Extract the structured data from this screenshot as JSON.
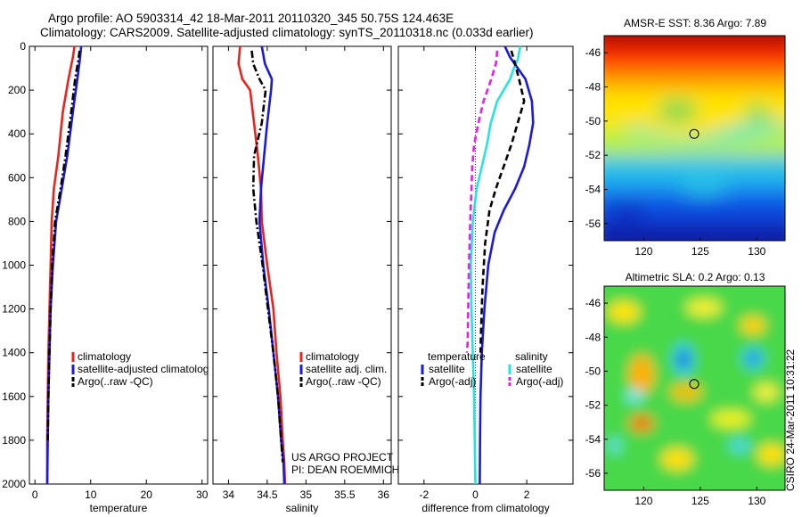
{
  "title": {
    "line1": "Argo profile: AO 5903314_42 18-Mar-2011 20110320_345 50.75S 124.463E",
    "line2": "Climatology: CARS2009. Satellite-adjusted climatology: synTS_20110318.nc (0.033d earlier)"
  },
  "side_credit": "CSIRO 24-Mar-2011 10:31:22",
  "project_credit": [
    "US ARGO PROJECT",
    "PI: DEAN ROEMMICH"
  ],
  "colors": {
    "climatology": "#e8241c",
    "satellite": "#1a1adb",
    "argo": "#000000",
    "satellite_salinity": "#26e3e3",
    "argo_salinity_adj": "#e61ee6"
  },
  "chart_data": [
    {
      "type": "line",
      "xlabel": "temperature",
      "ylabel": "",
      "xlim": [
        -1,
        31
      ],
      "ylim": [
        2000,
        0
      ],
      "y_inverted": true,
      "xticks": [
        "0",
        "10",
        "20",
        "30"
      ],
      "yticks": [
        "0",
        "200",
        "400",
        "600",
        "800",
        "1000",
        "1200",
        "1400",
        "1600",
        "1800",
        "2000"
      ],
      "legend": [
        "climatology",
        "satellite-adjusted climatolog",
        "Argo(..raw -QC)"
      ],
      "legend_placement": "lower-right",
      "series": [
        {
          "name": "climatology",
          "style": "solid",
          "color_key": "climatology",
          "x": [
            7.1,
            6.8,
            6.0,
            5.0,
            4.2,
            3.4,
            3.0,
            2.8,
            2.6,
            2.4,
            2.3,
            2.2,
            2.2
          ],
          "y": [
            0,
            50,
            150,
            300,
            500,
            650,
            800,
            1000,
            1200,
            1400,
            1600,
            1800,
            2000
          ]
        },
        {
          "name": "satellite-adjusted climatolog",
          "style": "solid",
          "color_key": "satellite",
          "x": [
            8.3,
            8.1,
            7.6,
            6.8,
            5.8,
            4.8,
            3.8,
            3.2,
            2.8,
            2.6,
            2.4,
            2.3,
            2.2
          ],
          "y": [
            0,
            50,
            150,
            300,
            500,
            650,
            800,
            1000,
            1200,
            1400,
            1600,
            1800,
            2000
          ]
        },
        {
          "name": "Argo(..raw -QC)",
          "style": "dashdot",
          "color_key": "argo",
          "x": [
            8.0,
            7.8,
            7.2,
            6.5,
            5.5,
            4.6,
            3.6,
            3.1,
            2.8,
            2.6,
            2.4,
            2.3
          ],
          "y": [
            20,
            60,
            150,
            300,
            500,
            650,
            800,
            1000,
            1200,
            1400,
            1600,
            1800
          ]
        }
      ]
    },
    {
      "type": "line",
      "xlabel": "salinity",
      "ylabel": "",
      "xlim": [
        33.8,
        36.1
      ],
      "ylim": [
        2000,
        0
      ],
      "y_inverted": true,
      "xticks": [
        "34",
        "34.5",
        "35",
        "35.5",
        "36"
      ],
      "yticks": [],
      "legend": [
        "climatology",
        "satellite adj. clim.",
        "Argo(..raw -QC)"
      ],
      "legend_placement": "lower-right",
      "series": [
        {
          "name": "climatology",
          "style": "solid",
          "color_key": "climatology",
          "x": [
            34.15,
            34.13,
            34.18,
            34.28,
            34.33,
            34.38,
            34.42,
            34.43,
            34.5,
            34.58,
            34.62,
            34.67,
            34.7,
            34.72,
            34.73
          ],
          "y": [
            0,
            80,
            150,
            200,
            350,
            500,
            650,
            800,
            1000,
            1200,
            1400,
            1600,
            1800,
            1900,
            2000
          ]
        },
        {
          "name": "satellite adj. clim.",
          "style": "solid",
          "color_key": "satellite",
          "x": [
            34.43,
            34.47,
            34.56,
            34.55,
            34.5,
            34.46,
            34.42,
            34.4,
            34.45,
            34.52,
            34.58,
            34.64,
            34.68,
            34.71,
            34.72
          ],
          "y": [
            0,
            80,
            150,
            200,
            350,
            500,
            650,
            800,
            1000,
            1200,
            1400,
            1600,
            1800,
            1900,
            2000
          ]
        },
        {
          "name": "Argo(..raw -QC)",
          "style": "dashdot",
          "color_key": "argo",
          "x": [
            34.3,
            34.32,
            34.4,
            34.48,
            34.43,
            34.33,
            34.32,
            34.36,
            34.44,
            34.51,
            34.58,
            34.64,
            34.68,
            34.7
          ],
          "y": [
            20,
            80,
            150,
            200,
            350,
            500,
            650,
            800,
            1000,
            1200,
            1400,
            1600,
            1800,
            1900
          ]
        }
      ]
    },
    {
      "type": "line",
      "xlabel": "difference from climatology",
      "ylabel": "",
      "xlim": [
        -3,
        3.8
      ],
      "ylim": [
        2000,
        0
      ],
      "y_inverted": true,
      "xticks": [
        "-2",
        "0",
        "2"
      ],
      "yticks": [],
      "reference_line": {
        "x": 0,
        "style": "dotted"
      },
      "legend_groups": [
        {
          "heading": "temperature",
          "entries": [
            "satellite",
            "Argo(-adj)"
          ]
        },
        {
          "heading": "salinity",
          "entries": [
            "satellite",
            "Argo(-adj)"
          ]
        }
      ],
      "legend_placement": "lower-right",
      "series": [
        {
          "name": "satellite",
          "group": "temperature",
          "style": "solid",
          "color_key": "satellite",
          "x": [
            1.15,
            1.35,
            1.65,
            1.95,
            2.2,
            2.25,
            2.1,
            1.9,
            1.55,
            1.1,
            0.75,
            0.5,
            0.35,
            0.25,
            0.2,
            0.18,
            0.17
          ],
          "y": [
            0,
            50,
            100,
            150,
            250,
            350,
            450,
            550,
            650,
            750,
            850,
            1000,
            1200,
            1400,
            1600,
            1800,
            2000
          ]
        },
        {
          "name": "satellite",
          "group": "salinity",
          "style": "solid",
          "color_key": "satellite_salinity",
          "x": [
            1.75,
            1.65,
            1.5,
            1.35,
            0.85,
            0.6,
            0.45,
            0.25,
            0.05,
            -0.1,
            -0.18,
            -0.15,
            -0.1,
            -0.05,
            0.0
          ],
          "y": [
            0,
            60,
            100,
            150,
            250,
            350,
            450,
            550,
            650,
            800,
            1000,
            1200,
            1400,
            1600,
            2000
          ]
        },
        {
          "name": "Argo(-adj)",
          "group": "temperature",
          "style": "dashed",
          "color_key": "argo",
          "x": [
            1.4,
            1.5,
            1.7,
            1.9,
            1.65,
            1.4,
            1.1,
            0.8,
            0.55,
            0.38,
            0.28,
            0.22,
            0.2
          ],
          "y": [
            20,
            60,
            150,
            250,
            350,
            450,
            550,
            650,
            750,
            900,
            1100,
            1300,
            1400
          ]
        },
        {
          "name": "Argo(-adj)",
          "group": "salinity",
          "style": "dashed",
          "color_key": "argo_salinity_adj",
          "x": [
            0.85,
            0.8,
            0.62,
            0.32,
            0.12,
            -0.05,
            -0.12,
            -0.15,
            -0.2,
            -0.25,
            -0.28,
            -0.3,
            -0.33
          ],
          "y": [
            20,
            80,
            150,
            250,
            350,
            450,
            550,
            650,
            800,
            1000,
            1200,
            1350,
            1400
          ]
        }
      ]
    },
    {
      "type": "heatmap",
      "title": "AMSR-E SST: 8.36 Argo: 7.89",
      "xlim": [
        116.5,
        132.5
      ],
      "ylim": [
        -57,
        -45
      ],
      "xticks": [
        "120",
        "125",
        "130"
      ],
      "yticks": [
        "-46",
        "-48",
        "-50",
        "-52",
        "-54",
        "-56"
      ],
      "colormap": "jet",
      "marker": {
        "lon": 124.463,
        "lat": -50.75,
        "shape": "circle"
      }
    },
    {
      "type": "heatmap",
      "title": "Altimetric SLA: 0.2 Argo: 0.13",
      "xlim": [
        116.5,
        132.5
      ],
      "ylim": [
        -57,
        -45
      ],
      "xticks": [
        "120",
        "125",
        "130"
      ],
      "yticks": [
        "-46",
        "-48",
        "-50",
        "-52",
        "-54",
        "-56"
      ],
      "colormap": "jet",
      "marker": {
        "lon": 124.463,
        "lat": -50.75,
        "shape": "circle"
      }
    }
  ]
}
